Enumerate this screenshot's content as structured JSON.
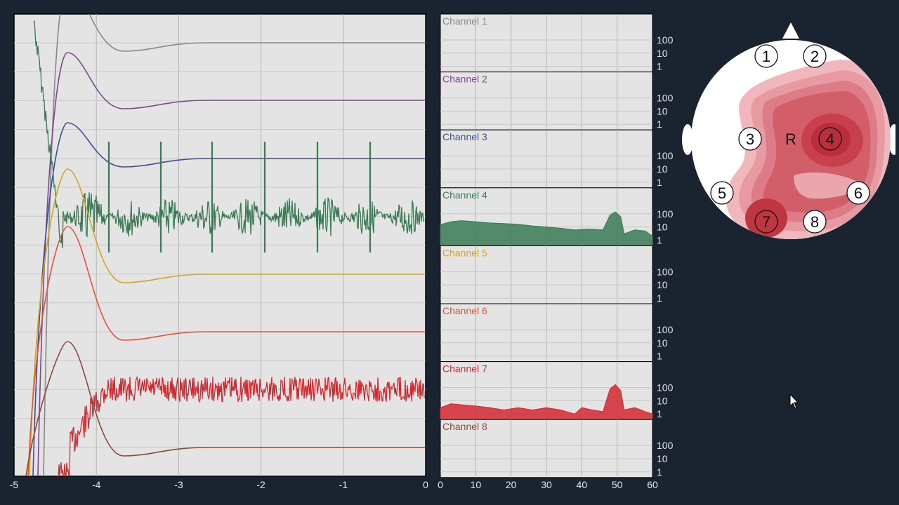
{
  "chart_data": [
    {
      "type": "line",
      "title": "",
      "xlabel": "",
      "ylabel": "",
      "xlim": [
        -5,
        0
      ],
      "x_ticks": [
        "-5",
        "-4",
        "-3",
        "-2",
        "-1",
        "0"
      ],
      "grid": true,
      "series": [
        {
          "channel": 1,
          "color": "#888888",
          "kind": "smooth"
        },
        {
          "channel": 2,
          "color": "#7b4a8c",
          "kind": "smooth"
        },
        {
          "channel": 3,
          "color": "#3f4f95",
          "kind": "smooth"
        },
        {
          "channel": 4,
          "color": "#3a7a55",
          "kind": "noisy-spiky"
        },
        {
          "channel": 5,
          "color": "#d4a520",
          "kind": "smooth"
        },
        {
          "channel": 6,
          "color": "#e5523a",
          "kind": "smooth"
        },
        {
          "channel": 7,
          "color": "#d12a30",
          "kind": "noisy"
        },
        {
          "channel": 8,
          "color": "#8a4a3a",
          "kind": "smooth"
        }
      ]
    },
    {
      "type": "area",
      "title": "",
      "xlim": [
        0,
        60
      ],
      "x_ticks": [
        "0",
        "10",
        "20",
        "30",
        "40",
        "50",
        "60"
      ],
      "y_scale": "log",
      "y_ticks": [
        "100",
        "10",
        "1"
      ],
      "grid": true,
      "panels": [
        {
          "label": "Channel 1",
          "color": "#888888",
          "filled": false
        },
        {
          "label": "Channel 2",
          "color": "#7b4a8c",
          "filled": false
        },
        {
          "label": "Channel 3",
          "color": "#3f4f95",
          "filled": false
        },
        {
          "label": "Channel 4",
          "color": "#3a7a55",
          "filled": true,
          "x": [
            0,
            3,
            6,
            10,
            14,
            18,
            22,
            26,
            30,
            34,
            38,
            42,
            46,
            48,
            49.5,
            51,
            52,
            55,
            58,
            60
          ],
          "y": [
            15,
            25,
            30,
            25,
            20,
            18,
            16,
            12,
            10,
            8,
            6,
            7,
            6,
            80,
            140,
            60,
            3,
            6,
            5,
            2
          ]
        },
        {
          "label": "Channel 5",
          "color": "#d4a520",
          "filled": false
        },
        {
          "label": "Channel 6",
          "color": "#e5523a",
          "filled": false
        },
        {
          "label": "Channel 7",
          "color": "#d12a30",
          "filled": true,
          "x": [
            0,
            3,
            6,
            10,
            14,
            18,
            22,
            26,
            30,
            34,
            38,
            40,
            43,
            46,
            48,
            49.5,
            51,
            52,
            55,
            58,
            60
          ],
          "y": [
            3,
            6,
            5,
            4,
            3,
            2,
            3,
            2,
            3,
            2,
            1,
            3,
            2,
            1.5,
            80,
            170,
            60,
            2,
            3,
            1.5,
            1
          ]
        },
        {
          "label": "Channel 8",
          "color": "#8a4a3a",
          "filled": false
        }
      ]
    }
  ],
  "headmap": {
    "center_label": "R",
    "electrodes": [
      "1",
      "2",
      "3",
      "4",
      "5",
      "6",
      "7",
      "8"
    ],
    "accent_color": "#c8404c"
  }
}
